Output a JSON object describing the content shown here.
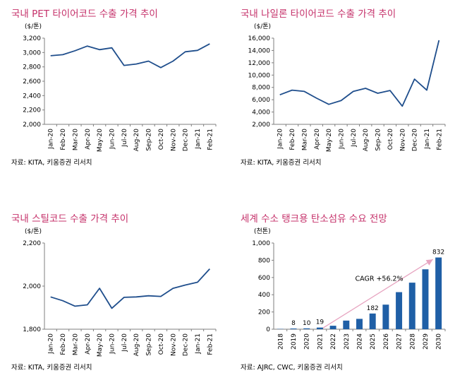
{
  "colors": {
    "title": "#c5316a",
    "line": "#1f4e8c",
    "bar": "#1f5fa6",
    "arrow": "#e7a4c0",
    "axis": "#7f7f7f"
  },
  "chart_data": [
    {
      "type": "line",
      "title": "국내 PET 타이어코드 수출 가격 추이",
      "unit": "($/톤)",
      "source": "자료: KITA, 키움증권 리서치",
      "categories": [
        "Jan-20",
        "Feb-20",
        "Mar-20",
        "Apr-20",
        "May-20",
        "Jun-20",
        "Jul-20",
        "Aug-20",
        "Sep-20",
        "Oct-20",
        "Nov-20",
        "Dec-20",
        "Jan-21",
        "Feb-21"
      ],
      "series": [
        {
          "values": [
            2955,
            2970,
            3025,
            3090,
            3040,
            3065,
            2820,
            2840,
            2880,
            2790,
            2880,
            3010,
            3030,
            3120
          ]
        }
      ],
      "ylim": [
        2000,
        3200
      ],
      "yticks": [
        2000,
        2200,
        2400,
        2600,
        2800,
        3000,
        3200
      ],
      "ytick_labels": [
        "2,000",
        "2,200",
        "2,400",
        "2,600",
        "2,800",
        "3,000",
        "3,200"
      ]
    },
    {
      "type": "line",
      "title": "국내 나일론 타이어코드 수출 가격 추이",
      "unit": "($/톤)",
      "source": "자료: KITA, 키움증권 리서치",
      "categories": [
        "Jan-20",
        "Feb-20",
        "Mar-20",
        "Apr-20",
        "May-20",
        "Jun-20",
        "Jul-20",
        "Aug-20",
        "Sep-20",
        "Oct-20",
        "Nov-20",
        "Dec-20",
        "Jan-21",
        "Feb-21"
      ],
      "series": [
        {
          "values": [
            6800,
            7550,
            7350,
            6250,
            5250,
            5850,
            7350,
            7850,
            7050,
            7500,
            4950,
            9350,
            7550,
            15650
          ]
        }
      ],
      "ylim": [
        2000,
        16000
      ],
      "yticks": [
        2000,
        4000,
        6000,
        8000,
        10000,
        12000,
        14000,
        16000
      ],
      "ytick_labels": [
        "2,000",
        "4,000",
        "6,000",
        "8,000",
        "10,000",
        "12,000",
        "14,000",
        "16,000"
      ]
    },
    {
      "type": "line",
      "title": "국내 스틸코드 수출 가격 추이",
      "unit": "($/톤)",
      "source": "자료: KITA, 키움증권 리서치",
      "categories": [
        "Jan-20",
        "Feb-20",
        "Mar-20",
        "Apr-20",
        "May-20",
        "Jun-20",
        "Jul-20",
        "Aug-20",
        "Sep-20",
        "Oct-20",
        "Nov-20",
        "Dec-20",
        "Jan-21",
        "Feb-21"
      ],
      "series": [
        {
          "values": [
            1950,
            1932,
            1907,
            1913,
            1990,
            1897,
            1948,
            1950,
            1955,
            1952,
            1990,
            2005,
            2018,
            2080
          ]
        }
      ],
      "ylim": [
        1800,
        2200
      ],
      "yticks": [
        1800,
        2000,
        2200
      ],
      "ytick_labels": [
        "1,800",
        "2,000",
        "2,200"
      ]
    },
    {
      "type": "bar",
      "title": "세계 수소 탱크용 탄소섬유 수요 전망",
      "unit": "(천톤)",
      "source": "자료: AJRC, CWC, 키움증권 리서치",
      "categories": [
        "2018",
        "2019",
        "2020",
        "2021",
        "2022",
        "2023",
        "2024",
        "2025",
        "2026",
        "2027",
        "2028",
        "2029",
        "2030"
      ],
      "series": [
        {
          "values": [
            3,
            8,
            10,
            19,
            40,
            100,
            120,
            182,
            285,
            430,
            540,
            695,
            832
          ]
        }
      ],
      "data_labels": [
        "",
        "8",
        "10",
        "19",
        "",
        "",
        "",
        "182",
        "",
        "",
        "",
        "",
        "832"
      ],
      "ylim": [
        0,
        1000
      ],
      "yticks": [
        0,
        200,
        400,
        600,
        800,
        1000
      ],
      "ytick_labels": [
        "0",
        "200",
        "400",
        "600",
        "800",
        "1,000"
      ],
      "annotation": "CAGR +56.2%"
    }
  ]
}
